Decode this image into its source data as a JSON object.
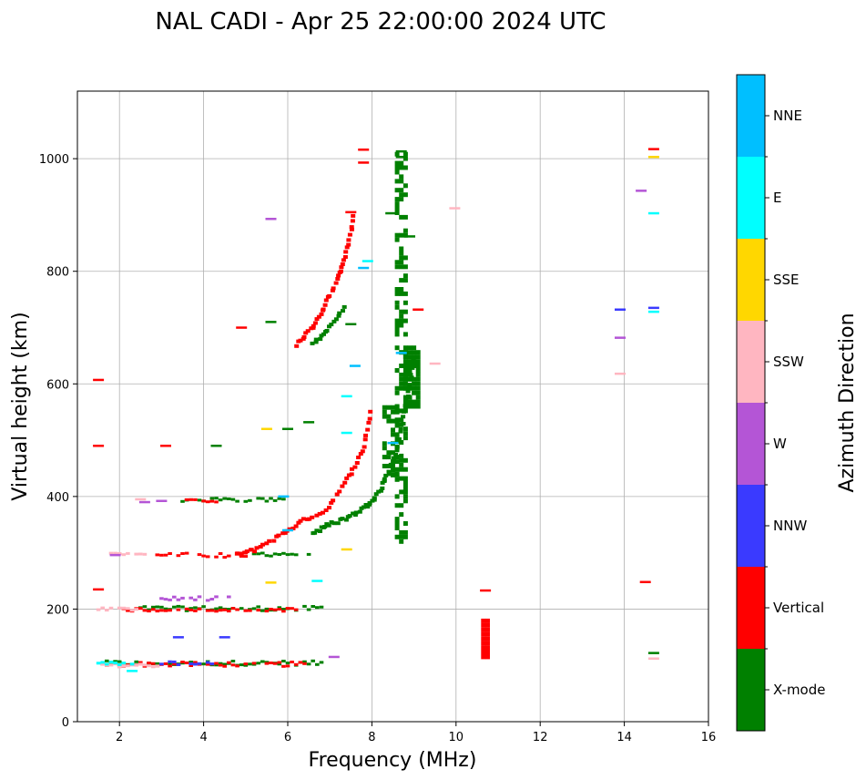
{
  "chart_data": {
    "type": "scatter",
    "title": "NAL CADI - Apr 25 22:00:00 2024 UTC",
    "xlabel": "Frequency (MHz)",
    "ylabel": "Virtual height (km)",
    "xlim": [
      1,
      16
    ],
    "ylim": [
      0,
      1120
    ],
    "xticks": [
      2,
      4,
      6,
      8,
      10,
      12,
      14,
      16
    ],
    "yticks": [
      0,
      200,
      400,
      600,
      800,
      1000
    ],
    "grid": true,
    "colorbar": {
      "label": "Azimuth Direction",
      "categories": [
        {
          "name": "X-mode",
          "color": "#008000"
        },
        {
          "name": "Vertical",
          "color": "#ff0000"
        },
        {
          "name": "NNW",
          "color": "#3a3aff"
        },
        {
          "name": "W",
          "color": "#b455d6"
        },
        {
          "name": "SSW",
          "color": "#ffb6c1"
        },
        {
          "name": "SSE",
          "color": "#ffd700"
        },
        {
          "name": "E",
          "color": "#00ffff"
        },
        {
          "name": "NNE",
          "color": "#00bfff"
        }
      ]
    },
    "traces": [
      {
        "category": "X-mode",
        "x0": 1.6,
        "x1": 6.8,
        "y": 104,
        "dy": 4
      },
      {
        "category": "X-mode",
        "x0": 2.4,
        "x1": 6.8,
        "y": 201,
        "dy": 4
      },
      {
        "category": "X-mode",
        "x0": 5.2,
        "x1": 6.6,
        "y": 298,
        "dy": 4
      },
      {
        "category": "X-mode",
        "x0": 3.5,
        "x1": 5.9,
        "y": 394,
        "dy": 3
      },
      {
        "category": "Vertical",
        "x0": 1.7,
        "x1": 6.4,
        "y": 102,
        "dy": 4
      },
      {
        "category": "Vertical",
        "x0": 2.0,
        "x1": 6.2,
        "y": 199,
        "dy": 3
      },
      {
        "category": "Vertical",
        "x0": 2.9,
        "x1": 5.0,
        "y": 296,
        "dy": 4
      },
      {
        "category": "Vertical",
        "x0": 3.6,
        "x1": 4.3,
        "y": 393,
        "dy": 3
      },
      {
        "category": "SSW",
        "x0": 1.5,
        "x1": 3.0,
        "y": 100,
        "dy": 3
      },
      {
        "category": "SSW",
        "x0": 1.7,
        "x1": 2.7,
        "y": 297,
        "dy": 3
      },
      {
        "category": "SSW",
        "x0": 1.5,
        "x1": 2.6,
        "y": 200,
        "dy": 3
      },
      {
        "category": "NNW",
        "x0": 3.0,
        "x1": 4.2,
        "y": 104,
        "dy": 3
      },
      {
        "category": "W",
        "x0": 3.0,
        "x1": 4.6,
        "y": 218,
        "dy": 4
      },
      {
        "category": "E",
        "x0": 1.5,
        "x1": 2.4,
        "y": 103,
        "dy": 3
      }
    ],
    "curves": [
      {
        "category": "Vertical",
        "x": [
          4.8,
          5.2,
          5.8,
          6.3,
          6.9,
          7.4,
          7.8,
          8.0
        ],
        "y": [
          296,
          305,
          330,
          355,
          375,
          430,
          480,
          560
        ],
        "scatter": 6
      },
      {
        "category": "X-mode",
        "x": [
          6.6,
          7.0,
          7.5,
          7.9,
          8.2,
          8.5,
          8.7,
          8.9,
          9.0
        ],
        "y": [
          335,
          350,
          365,
          385,
          410,
          460,
          520,
          600,
          650
        ],
        "scatter": 7
      },
      {
        "category": "Vertical",
        "x": [
          6.2,
          6.6,
          6.9,
          7.2,
          7.4,
          7.6
        ],
        "y": [
          670,
          700,
          740,
          790,
          840,
          905
        ],
        "scatter": 6
      },
      {
        "category": "X-mode",
        "x": [
          6.6,
          7.0,
          7.4
        ],
        "y": [
          670,
          700,
          740
        ],
        "scatter": 4
      }
    ],
    "blocks": [
      {
        "category": "X-mode",
        "x0": 8.6,
        "x1": 8.8,
        "y0": 320,
        "y1": 1010,
        "density": 0.45
      },
      {
        "category": "X-mode",
        "x0": 8.8,
        "x1": 9.1,
        "y0": 560,
        "y1": 665,
        "density": 0.8
      },
      {
        "category": "X-mode",
        "x0": 8.3,
        "x1": 8.6,
        "y0": 430,
        "y1": 560,
        "density": 0.5
      },
      {
        "category": "Vertical",
        "x0": 10.65,
        "x1": 10.8,
        "y0": 115,
        "y1": 185,
        "density": 1.0
      }
    ],
    "points": [
      {
        "category": "Vertical",
        "x": 10.7,
        "y": 233
      },
      {
        "category": "Vertical",
        "x": 1.5,
        "y": 490
      },
      {
        "category": "Vertical",
        "x": 1.5,
        "y": 607
      },
      {
        "category": "Vertical",
        "x": 1.5,
        "y": 235
      },
      {
        "category": "Vertical",
        "x": 3.1,
        "y": 490
      },
      {
        "category": "Vertical",
        "x": 4.9,
        "y": 700
      },
      {
        "category": "Vertical",
        "x": 14.5,
        "y": 248
      },
      {
        "category": "Vertical",
        "x": 14.7,
        "y": 1017
      },
      {
        "category": "Vertical",
        "x": 7.8,
        "y": 1016
      },
      {
        "category": "Vertical",
        "x": 7.8,
        "y": 993
      },
      {
        "category": "Vertical",
        "x": 9.1,
        "y": 732
      },
      {
        "category": "Vertical",
        "x": 7.5,
        "y": 905
      },
      {
        "category": "X-mode",
        "x": 8.7,
        "y": 1013
      },
      {
        "category": "X-mode",
        "x": 8.7,
        "y": 1003
      },
      {
        "category": "X-mode",
        "x": 8.45,
        "y": 903
      },
      {
        "category": "X-mode",
        "x": 8.9,
        "y": 862
      },
      {
        "category": "X-mode",
        "x": 14.7,
        "y": 122
      },
      {
        "category": "X-mode",
        "x": 4.3,
        "y": 490
      },
      {
        "category": "X-mode",
        "x": 6.5,
        "y": 532
      },
      {
        "category": "X-mode",
        "x": 6.0,
        "y": 520
      },
      {
        "category": "X-mode",
        "x": 7.5,
        "y": 706
      },
      {
        "category": "X-mode",
        "x": 5.6,
        "y": 710
      },
      {
        "category": "NNW",
        "x": 13.9,
        "y": 732
      },
      {
        "category": "NNW",
        "x": 4.5,
        "y": 150
      },
      {
        "category": "NNW",
        "x": 3.4,
        "y": 150
      },
      {
        "category": "NNW",
        "x": 14.7,
        "y": 735
      },
      {
        "category": "W",
        "x": 14.4,
        "y": 943
      },
      {
        "category": "W",
        "x": 13.9,
        "y": 682
      },
      {
        "category": "W",
        "x": 5.6,
        "y": 893
      },
      {
        "category": "W",
        "x": 3.0,
        "y": 392
      },
      {
        "category": "W",
        "x": 2.6,
        "y": 390
      },
      {
        "category": "W",
        "x": 7.1,
        "y": 115
      },
      {
        "category": "W",
        "x": 1.9,
        "y": 296
      },
      {
        "category": "SSW",
        "x": 9.97,
        "y": 912
      },
      {
        "category": "SSW",
        "x": 9.5,
        "y": 636
      },
      {
        "category": "SSW",
        "x": 14.7,
        "y": 112
      },
      {
        "category": "SSW",
        "x": 13.9,
        "y": 618
      },
      {
        "category": "SSW",
        "x": 2.5,
        "y": 395
      },
      {
        "category": "SSE",
        "x": 14.7,
        "y": 1003
      },
      {
        "category": "SSE",
        "x": 7.4,
        "y": 306
      },
      {
        "category": "SSE",
        "x": 5.5,
        "y": 520
      },
      {
        "category": "SSE",
        "x": 5.6,
        "y": 247
      },
      {
        "category": "E",
        "x": 14.7,
        "y": 903
      },
      {
        "category": "E",
        "x": 14.7,
        "y": 728
      },
      {
        "category": "E",
        "x": 7.9,
        "y": 818
      },
      {
        "category": "E",
        "x": 7.4,
        "y": 578
      },
      {
        "category": "E",
        "x": 7.4,
        "y": 513
      },
      {
        "category": "E",
        "x": 6.7,
        "y": 250
      },
      {
        "category": "E",
        "x": 2.3,
        "y": 90
      },
      {
        "category": "NNE",
        "x": 7.8,
        "y": 806
      },
      {
        "category": "NNE",
        "x": 8.5,
        "y": 495
      },
      {
        "category": "NNE",
        "x": 7.6,
        "y": 632
      },
      {
        "category": "NNE",
        "x": 5.9,
        "y": 400
      },
      {
        "category": "NNE",
        "x": 8.7,
        "y": 655
      },
      {
        "category": "NNE",
        "x": 6.0,
        "y": 340
      }
    ]
  }
}
